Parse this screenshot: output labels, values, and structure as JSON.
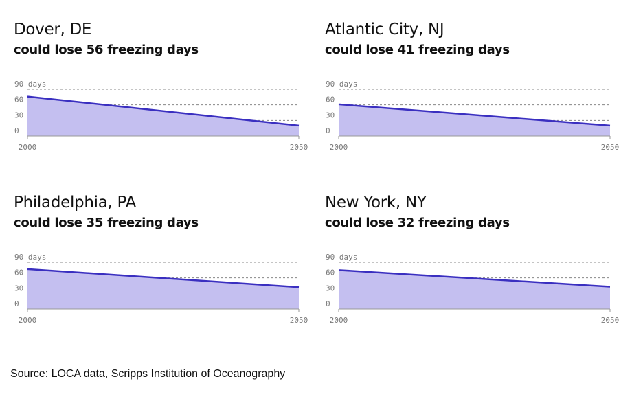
{
  "source": "Source: LOCA data, Scripps Institution of Oceanography",
  "colors": {
    "line": "#3a2fc0",
    "fill": "#c4bff0",
    "grid": "#888888",
    "axis": "#999999",
    "tick_text": "#777777"
  },
  "chart_data": [
    {
      "type": "area",
      "title": "Dover, DE",
      "subtitle": "could lose 56 freezing days",
      "x": [
        2000,
        2050
      ],
      "values": [
        76,
        20
      ],
      "ylim": [
        0,
        90
      ],
      "yticks": [
        0,
        30,
        60,
        90
      ],
      "ytick_labels": [
        "0",
        "30",
        "60",
        "90 days"
      ],
      "xticks": [
        "2000",
        "2050"
      ],
      "grid": true
    },
    {
      "type": "area",
      "title": "Atlantic City, NJ",
      "subtitle": "could lose 41 freezing days",
      "x": [
        2000,
        2050
      ],
      "values": [
        61,
        20
      ],
      "ylim": [
        0,
        90
      ],
      "yticks": [
        0,
        30,
        60,
        90
      ],
      "ytick_labels": [
        "0",
        "30",
        "60",
        "90 days"
      ],
      "xticks": [
        "2000",
        "2050"
      ],
      "grid": true
    },
    {
      "type": "area",
      "title": "Philadelphia, PA",
      "subtitle": "could lose 35 freezing days",
      "x": [
        2000,
        2050
      ],
      "values": [
        77,
        42
      ],
      "ylim": [
        0,
        90
      ],
      "yticks": [
        0,
        30,
        60,
        90
      ],
      "ytick_labels": [
        "0",
        "30",
        "60",
        "90 days"
      ],
      "xticks": [
        "2000",
        "2050"
      ],
      "grid": true
    },
    {
      "type": "area",
      "title": "New York, NY",
      "subtitle": "could lose 32 freezing days",
      "x": [
        2000,
        2050
      ],
      "values": [
        75,
        43
      ],
      "ylim": [
        0,
        90
      ],
      "yticks": [
        0,
        30,
        60,
        90
      ],
      "ytick_labels": [
        "0",
        "30",
        "60",
        "90 days"
      ],
      "xticks": [
        "2000",
        "2050"
      ],
      "grid": true
    }
  ]
}
